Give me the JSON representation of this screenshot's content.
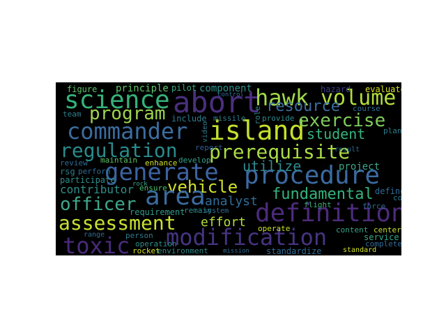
{
  "cloud": {
    "background": "#000000",
    "words": [
      {
        "text": "abort",
        "color": "#4a2f7e"
      },
      {
        "text": "hawk",
        "color": "#a2d84a"
      },
      {
        "text": "volume",
        "color": "#b2dd3a"
      },
      {
        "text": "science",
        "color": "#35b27a"
      },
      {
        "text": "commander",
        "color": "#3b6da0"
      },
      {
        "text": "island",
        "color": "#c4e02c"
      },
      {
        "text": "program",
        "color": "#9fd54c"
      },
      {
        "text": "resource",
        "color": "#3a6e9f"
      },
      {
        "text": "exercise",
        "color": "#7fcc5a"
      },
      {
        "text": "student",
        "color": "#35b47c"
      },
      {
        "text": "regulation",
        "color": "#2a8b8c"
      },
      {
        "text": "prerequisite",
        "color": "#a9dc45"
      },
      {
        "text": "generate",
        "color": "#3c63a0"
      },
      {
        "text": "procedure",
        "color": "#3b6aa0"
      },
      {
        "text": "utilize",
        "color": "#2f8a8e"
      },
      {
        "text": "vehicle",
        "color": "#cfe12a"
      },
      {
        "text": "area",
        "color": "#3a6c9e"
      },
      {
        "text": "fundamental",
        "color": "#35b47c"
      },
      {
        "text": "officer",
        "color": "#3fa88b"
      },
      {
        "text": "contributor",
        "color": "#2f8f8b"
      },
      {
        "text": "definition",
        "color": "#4c2b7b"
      },
      {
        "text": "analyst",
        "color": "#2f6e9a"
      },
      {
        "text": "assessment",
        "color": "#c9e031"
      },
      {
        "text": "effort",
        "color": "#b4de3c"
      },
      {
        "text": "modification",
        "color": "#463481"
      },
      {
        "text": "toxic",
        "color": "#4a2a7a"
      },
      {
        "text": "principle",
        "color": "#5ec56a"
      },
      {
        "text": "pilot",
        "color": "#3aaa85"
      },
      {
        "text": "component",
        "color": "#2f8f8a"
      },
      {
        "text": "hazard",
        "color": "#3a3f86"
      },
      {
        "text": "evaluate",
        "color": "#d7e21f"
      },
      {
        "text": "figure",
        "color": "#5dc66a"
      },
      {
        "text": "missile",
        "color": "#2f7e8e"
      },
      {
        "text": "include",
        "color": "#2e7b8f"
      },
      {
        "text": "course",
        "color": "#2e6e96"
      },
      {
        "text": "team",
        "color": "#2f7f8e"
      },
      {
        "text": "report",
        "color": "#2f5f96"
      },
      {
        "text": "provide",
        "color": "#2f8a8c"
      },
      {
        "text": "plan",
        "color": "#2c7f8d"
      },
      {
        "text": "result",
        "color": "#2a6f92"
      },
      {
        "text": "review",
        "color": "#2f6d97"
      },
      {
        "text": "maintain",
        "color": "#5dc46b"
      },
      {
        "text": "develop",
        "color": "#33a289"
      },
      {
        "text": "enhance",
        "color": "#d1e22a"
      },
      {
        "text": "project",
        "color": "#3da88a"
      },
      {
        "text": "rsg",
        "color": "#2f7c8e"
      },
      {
        "text": "perform",
        "color": "#2f6c98"
      },
      {
        "text": "participate",
        "color": "#2f8e8b"
      },
      {
        "text": "ensure",
        "color": "#4ec06e"
      },
      {
        "text": "requirement",
        "color": "#2f9a8a"
      },
      {
        "text": "remain",
        "color": "#2f8c8c"
      },
      {
        "text": "system",
        "color": "#2f6e96"
      },
      {
        "text": "define",
        "color": "#2f6c98"
      },
      {
        "text": "continue",
        "color": "#2c7a91"
      },
      {
        "text": "flight",
        "color": "#3ab37f"
      },
      {
        "text": "force",
        "color": "#2f6b97"
      },
      {
        "text": "center",
        "color": "#c9df2e"
      },
      {
        "text": "content",
        "color": "#3aa48a"
      },
      {
        "text": "service",
        "color": "#37a88a"
      },
      {
        "text": "complete",
        "color": "#2f6c98"
      },
      {
        "text": "operate",
        "color": "#c8e02d"
      },
      {
        "text": "person",
        "color": "#2f7a90"
      },
      {
        "text": "operation",
        "color": "#2f8e8b"
      },
      {
        "text": "rocket",
        "color": "#d8e220"
      },
      {
        "text": "environment",
        "color": "#2f8a8c"
      },
      {
        "text": "mission",
        "color": "#2f6e96"
      },
      {
        "text": "standardize",
        "color": "#2f6c98"
      },
      {
        "text": "standard",
        "color": "#d2e126"
      },
      {
        "text": "range",
        "color": "#2f6e96"
      },
      {
        "text": "control",
        "color": "#2f6c98"
      },
      {
        "text": "role",
        "color": "#2f8a8c"
      },
      {
        "text": "video",
        "color": "#2f7e8e"
      },
      {
        "text": "rock",
        "color": "#3aa78a"
      }
    ]
  }
}
